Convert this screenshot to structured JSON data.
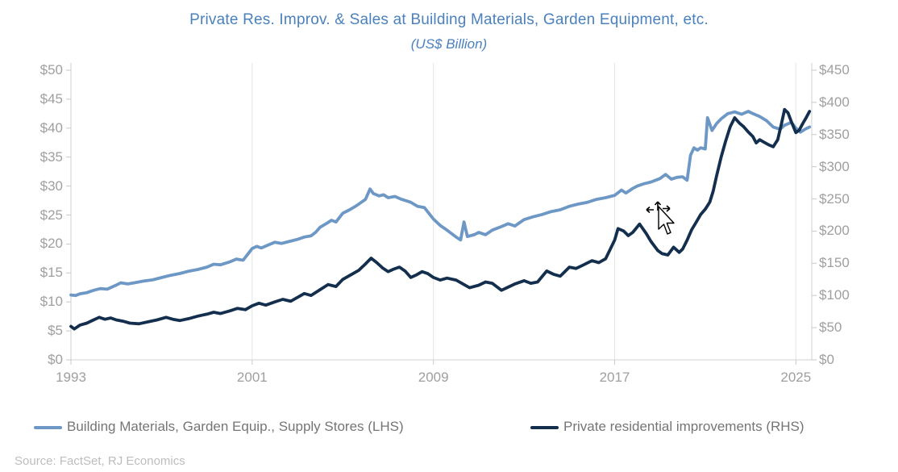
{
  "title": "Private Res. Improv. & Sales at Building Materials, Garden Equipment, etc.",
  "subtitle": "(US$ Billion)",
  "source": "Source: FactSet, RJ Economics",
  "colors": {
    "title_blue": "#4b81bd",
    "series_light_blue": "#6d97c4",
    "series_navy": "#132f4d",
    "axis_label_gray": "#9f9f9f",
    "legend_text_gray": "#757575",
    "source_gray": "#bdbdbd",
    "gridline": "#e5e5e5",
    "axis_line": "#d2d2d2",
    "tick_mark": "#c9c9c9"
  },
  "legend": [
    {
      "label": "Building Materials, Garden Equip., Supply Stores (LHS)",
      "color": "#6d97c4"
    },
    {
      "label": "Private residential improvements (RHS)",
      "color": "#132f4d"
    }
  ],
  "cursor": {
    "type": "move-cursor-with-pointer"
  },
  "chart_data": {
    "type": "line",
    "title": "Private Res. Improv. & Sales at Building Materials, Garden Equipment, etc.",
    "subtitle": "(US$ Billion)",
    "grid": "vertical-only",
    "legend_position": "bottom",
    "x_axis": {
      "min": 1993,
      "max": 2025.7,
      "ticks": [
        1993,
        2001,
        2009,
        2017,
        2025
      ]
    },
    "left_axis": {
      "min": 0,
      "max": 50,
      "ticks": [
        {
          "v": 50,
          "label": "$50"
        },
        {
          "v": 45,
          "label": "$45"
        },
        {
          "v": 40,
          "label": "$40"
        },
        {
          "v": 35,
          "label": "$35"
        },
        {
          "v": 30,
          "label": "$30"
        },
        {
          "v": 25,
          "label": "$25"
        },
        {
          "v": 20,
          "label": "$20"
        },
        {
          "v": 15,
          "label": "$15"
        },
        {
          "v": 10,
          "label": "$10"
        },
        {
          "v": 5,
          "label": "$5"
        },
        {
          "v": 0,
          "label": "$0"
        }
      ]
    },
    "right_axis": {
      "min": 0,
      "max": 450,
      "ticks": [
        {
          "v": 450,
          "label": "$450"
        },
        {
          "v": 400,
          "label": "$400"
        },
        {
          "v": 350,
          "label": "$350"
        },
        {
          "v": 300,
          "label": "$300"
        },
        {
          "v": 250,
          "label": "$250"
        },
        {
          "v": 200,
          "label": "$200"
        },
        {
          "v": 150,
          "label": "$150"
        },
        {
          "v": 100,
          "label": "$100"
        },
        {
          "v": 50,
          "label": "$50"
        },
        {
          "v": 0,
          "label": "$0"
        }
      ]
    },
    "series": [
      {
        "name": "Building Materials, Garden Equip., Supply Stores (LHS)",
        "axis": "left",
        "color": "#6d97c4",
        "points": [
          [
            1993.0,
            11.2
          ],
          [
            1993.2,
            11.1
          ],
          [
            1993.4,
            11.4
          ],
          [
            1993.7,
            11.6
          ],
          [
            1994.0,
            12.0
          ],
          [
            1994.3,
            12.3
          ],
          [
            1994.6,
            12.2
          ],
          [
            1995.0,
            12.9
          ],
          [
            1995.2,
            13.3
          ],
          [
            1995.5,
            13.1
          ],
          [
            1995.8,
            13.3
          ],
          [
            1996.2,
            13.6
          ],
          [
            1996.6,
            13.8
          ],
          [
            1997.0,
            14.2
          ],
          [
            1997.4,
            14.6
          ],
          [
            1997.8,
            14.9
          ],
          [
            1998.2,
            15.3
          ],
          [
            1998.6,
            15.6
          ],
          [
            1999.0,
            16.0
          ],
          [
            1999.3,
            16.5
          ],
          [
            1999.6,
            16.4
          ],
          [
            2000.0,
            16.9
          ],
          [
            2000.3,
            17.4
          ],
          [
            2000.6,
            17.2
          ],
          [
            2001.0,
            19.2
          ],
          [
            2001.2,
            19.6
          ],
          [
            2001.4,
            19.3
          ],
          [
            2001.7,
            19.8
          ],
          [
            2002.0,
            20.3
          ],
          [
            2002.3,
            20.1
          ],
          [
            2002.6,
            20.4
          ],
          [
            2003.0,
            20.8
          ],
          [
            2003.3,
            21.2
          ],
          [
            2003.6,
            21.4
          ],
          [
            2003.8,
            22.0
          ],
          [
            2004.0,
            22.9
          ],
          [
            2004.3,
            23.6
          ],
          [
            2004.5,
            24.1
          ],
          [
            2004.7,
            23.8
          ],
          [
            2005.0,
            25.3
          ],
          [
            2005.3,
            25.9
          ],
          [
            2005.6,
            26.6
          ],
          [
            2006.0,
            27.7
          ],
          [
            2006.2,
            29.5
          ],
          [
            2006.35,
            28.7
          ],
          [
            2006.6,
            28.3
          ],
          [
            2006.8,
            28.5
          ],
          [
            2007.0,
            28.0
          ],
          [
            2007.3,
            28.2
          ],
          [
            2007.6,
            27.7
          ],
          [
            2008.0,
            27.2
          ],
          [
            2008.3,
            26.5
          ],
          [
            2008.6,
            26.3
          ],
          [
            2009.0,
            24.3
          ],
          [
            2009.3,
            23.2
          ],
          [
            2009.6,
            22.4
          ],
          [
            2010.0,
            21.2
          ],
          [
            2010.2,
            20.7
          ],
          [
            2010.35,
            23.8
          ],
          [
            2010.5,
            21.3
          ],
          [
            2010.8,
            21.6
          ],
          [
            2011.0,
            22.0
          ],
          [
            2011.3,
            21.6
          ],
          [
            2011.6,
            22.4
          ],
          [
            2012.0,
            23.0
          ],
          [
            2012.3,
            23.5
          ],
          [
            2012.6,
            23.1
          ],
          [
            2013.0,
            24.2
          ],
          [
            2013.4,
            24.7
          ],
          [
            2013.8,
            25.1
          ],
          [
            2014.2,
            25.6
          ],
          [
            2014.6,
            25.9
          ],
          [
            2015.0,
            26.5
          ],
          [
            2015.4,
            26.9
          ],
          [
            2015.8,
            27.2
          ],
          [
            2016.2,
            27.7
          ],
          [
            2016.6,
            28.0
          ],
          [
            2017.0,
            28.4
          ],
          [
            2017.3,
            29.3
          ],
          [
            2017.5,
            28.8
          ],
          [
            2017.8,
            29.6
          ],
          [
            2018.0,
            30.0
          ],
          [
            2018.3,
            30.4
          ],
          [
            2018.6,
            30.7
          ],
          [
            2019.0,
            31.3
          ],
          [
            2019.25,
            32.0
          ],
          [
            2019.5,
            31.2
          ],
          [
            2019.75,
            31.5
          ],
          [
            2020.0,
            31.6
          ],
          [
            2020.2,
            31.0
          ],
          [
            2020.35,
            35.3
          ],
          [
            2020.5,
            36.6
          ],
          [
            2020.65,
            36.2
          ],
          [
            2020.8,
            36.6
          ],
          [
            2021.0,
            36.4
          ],
          [
            2021.1,
            41.8
          ],
          [
            2021.3,
            39.6
          ],
          [
            2021.5,
            40.8
          ],
          [
            2021.7,
            41.6
          ],
          [
            2022.0,
            42.5
          ],
          [
            2022.3,
            42.8
          ],
          [
            2022.6,
            42.4
          ],
          [
            2022.9,
            42.9
          ],
          [
            2023.1,
            42.5
          ],
          [
            2023.4,
            42.0
          ],
          [
            2023.7,
            41.3
          ],
          [
            2024.0,
            40.2
          ],
          [
            2024.3,
            39.8
          ],
          [
            2024.5,
            40.5
          ],
          [
            2024.8,
            41.0
          ],
          [
            2025.0,
            40.0
          ],
          [
            2025.2,
            39.3
          ],
          [
            2025.4,
            39.8
          ],
          [
            2025.6,
            40.2
          ]
        ]
      },
      {
        "name": "Private residential improvements (RHS)",
        "axis": "right",
        "color": "#132f4d",
        "points": [
          [
            1993.0,
            52
          ],
          [
            1993.15,
            48
          ],
          [
            1993.4,
            54
          ],
          [
            1993.7,
            57
          ],
          [
            1994.0,
            62
          ],
          [
            1994.25,
            66
          ],
          [
            1994.5,
            63
          ],
          [
            1994.75,
            65
          ],
          [
            1995.0,
            62
          ],
          [
            1995.3,
            60
          ],
          [
            1995.6,
            57
          ],
          [
            1996.0,
            56
          ],
          [
            1996.4,
            59
          ],
          [
            1996.8,
            62
          ],
          [
            1997.2,
            66
          ],
          [
            1997.5,
            63
          ],
          [
            1997.8,
            61
          ],
          [
            1998.2,
            64
          ],
          [
            1998.6,
            68
          ],
          [
            1999.0,
            71
          ],
          [
            1999.3,
            74
          ],
          [
            1999.6,
            72
          ],
          [
            2000.0,
            76
          ],
          [
            2000.35,
            80
          ],
          [
            2000.7,
            78
          ],
          [
            2001.0,
            84
          ],
          [
            2001.3,
            88
          ],
          [
            2001.6,
            85
          ],
          [
            2002.0,
            90
          ],
          [
            2002.35,
            94
          ],
          [
            2002.7,
            91
          ],
          [
            2003.0,
            97
          ],
          [
            2003.3,
            103
          ],
          [
            2003.6,
            100
          ],
          [
            2004.0,
            109
          ],
          [
            2004.35,
            117
          ],
          [
            2004.7,
            114
          ],
          [
            2005.0,
            125
          ],
          [
            2005.35,
            132
          ],
          [
            2005.7,
            139
          ],
          [
            2006.0,
            149
          ],
          [
            2006.25,
            158
          ],
          [
            2006.5,
            151
          ],
          [
            2006.75,
            143
          ],
          [
            2007.0,
            137
          ],
          [
            2007.25,
            141
          ],
          [
            2007.5,
            144
          ],
          [
            2007.75,
            138
          ],
          [
            2008.0,
            128
          ],
          [
            2008.25,
            132
          ],
          [
            2008.5,
            137
          ],
          [
            2008.75,
            134
          ],
          [
            2009.0,
            128
          ],
          [
            2009.3,
            124
          ],
          [
            2009.6,
            127
          ],
          [
            2010.0,
            124
          ],
          [
            2010.3,
            118
          ],
          [
            2010.6,
            112
          ],
          [
            2011.0,
            116
          ],
          [
            2011.3,
            121
          ],
          [
            2011.6,
            119
          ],
          [
            2012.0,
            108
          ],
          [
            2012.3,
            113
          ],
          [
            2012.6,
            118
          ],
          [
            2013.0,
            123
          ],
          [
            2013.3,
            119
          ],
          [
            2013.6,
            121
          ],
          [
            2014.0,
            138
          ],
          [
            2014.3,
            133
          ],
          [
            2014.6,
            130
          ],
          [
            2015.0,
            144
          ],
          [
            2015.3,
            142
          ],
          [
            2015.6,
            147
          ],
          [
            2016.0,
            154
          ],
          [
            2016.3,
            151
          ],
          [
            2016.6,
            157
          ],
          [
            2017.0,
            186
          ],
          [
            2017.15,
            204
          ],
          [
            2017.4,
            200
          ],
          [
            2017.6,
            193
          ],
          [
            2017.8,
            198
          ],
          [
            2018.1,
            211
          ],
          [
            2018.4,
            196
          ],
          [
            2018.6,
            184
          ],
          [
            2018.9,
            170
          ],
          [
            2019.1,
            165
          ],
          [
            2019.35,
            163
          ],
          [
            2019.6,
            175
          ],
          [
            2019.85,
            167
          ],
          [
            2020.0,
            172
          ],
          [
            2020.2,
            186
          ],
          [
            2020.4,
            202
          ],
          [
            2020.6,
            214
          ],
          [
            2020.8,
            226
          ],
          [
            2021.0,
            234
          ],
          [
            2021.2,
            245
          ],
          [
            2021.35,
            262
          ],
          [
            2021.5,
            286
          ],
          [
            2021.7,
            315
          ],
          [
            2021.9,
            340
          ],
          [
            2022.1,
            362
          ],
          [
            2022.3,
            376
          ],
          [
            2022.5,
            368
          ],
          [
            2022.7,
            362
          ],
          [
            2022.9,
            354
          ],
          [
            2023.1,
            347
          ],
          [
            2023.25,
            337
          ],
          [
            2023.4,
            342
          ],
          [
            2023.6,
            338
          ],
          [
            2023.8,
            334
          ],
          [
            2024.0,
            331
          ],
          [
            2024.2,
            342
          ],
          [
            2024.35,
            365
          ],
          [
            2024.5,
            389
          ],
          [
            2024.65,
            384
          ],
          [
            2024.8,
            370
          ],
          [
            2025.0,
            353
          ],
          [
            2025.15,
            357
          ],
          [
            2025.3,
            367
          ],
          [
            2025.45,
            376
          ],
          [
            2025.6,
            386
          ]
        ]
      }
    ]
  }
}
